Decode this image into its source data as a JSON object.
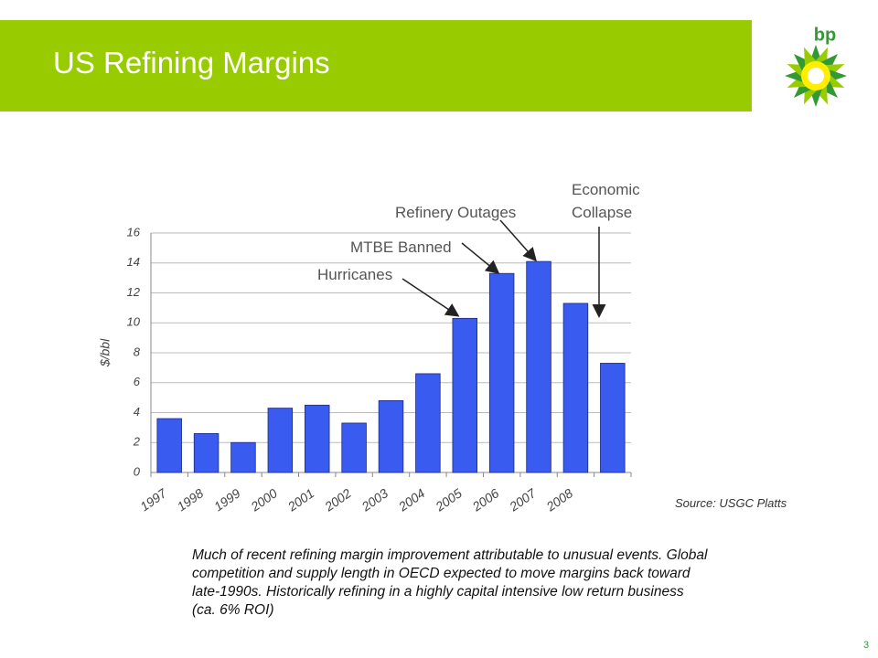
{
  "slide": {
    "title": "US Refining Margins",
    "logo": "bp",
    "source": "Source: USGC Platts",
    "body": "Much of recent refining margin improvement attributable to unusual events. Global competition and supply length in OECD expected to move margins back toward late-1990s. Historically refining in a highly capital intensive low return business (ca. 6% ROI)",
    "page_number": "3"
  },
  "chart_data": {
    "type": "bar",
    "categories": [
      "1997",
      "1998",
      "1999",
      "2000",
      "2001",
      "2002",
      "2003",
      "2004",
      "2005",
      "2006",
      "2007",
      "2008",
      null
    ],
    "values": [
      3.6,
      2.6,
      2.0,
      4.3,
      4.5,
      3.3,
      4.8,
      6.6,
      10.3,
      13.3,
      14.1,
      11.3,
      7.3
    ],
    "color": "#3a5bf0",
    "y_label": "$/bbl",
    "ylim": [
      0,
      16
    ],
    "yticks": [
      0,
      2,
      4,
      6,
      8,
      10,
      12,
      14,
      16
    ],
    "grid": true,
    "annotations": [
      "Hurricanes",
      "MTBE Banned",
      "Refinery Outages",
      "Economic Collapse"
    ]
  }
}
